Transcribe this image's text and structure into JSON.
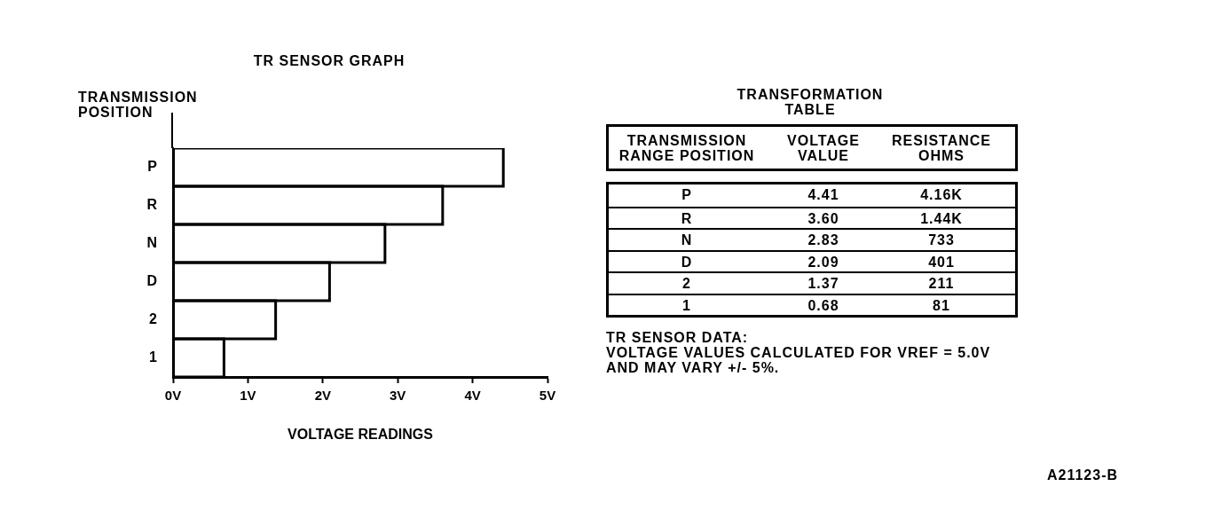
{
  "chart_data": [
    {
      "type": "bar",
      "orientation": "horizontal",
      "title": "TR SENSOR GRAPH",
      "xlabel": "VOLTAGE READINGS",
      "ylabel": "TRANSMISSION POSITION",
      "categories": [
        "P",
        "R",
        "N",
        "D",
        "2",
        "1"
      ],
      "values": [
        4.41,
        3.6,
        2.83,
        2.09,
        1.37,
        0.68
      ],
      "color": "#000000",
      "xlim": [
        0,
        5
      ],
      "xticks": [
        {
          "value": 0,
          "label": "0V"
        },
        {
          "value": 1,
          "label": "1V"
        },
        {
          "value": 2,
          "label": "2V"
        },
        {
          "value": 3,
          "label": "3V"
        },
        {
          "value": 4,
          "label": "4V"
        },
        {
          "value": 5,
          "label": "5V"
        }
      ]
    },
    {
      "type": "other",
      "title": "TRANSFORMATION TABLE",
      "xlabel": "TRANSMISSION RANGE POSITION",
      "categories": [
        "P",
        "R",
        "N",
        "D",
        "2",
        "1"
      ],
      "series": [
        {
          "name": "VOLTAGE VALUE",
          "values": [
            4.41,
            3.6,
            2.83,
            2.09,
            1.37,
            0.68
          ],
          "value_labels": [
            "4.41",
            "3.60",
            "2.83",
            "2.09",
            "1.37",
            "0.68"
          ]
        },
        {
          "name": "RESISTANCE OHMS",
          "values": [
            4160,
            1440,
            733,
            401,
            211,
            81
          ],
          "value_labels": [
            "4.16K",
            "1.44K",
            "733",
            "401",
            "211",
            "81"
          ]
        }
      ],
      "annotations": [
        "TR SENSOR DATA:",
        "VOLTAGE VALUES CALCULATED FOR VREF = 5.0V AND MAY VARY +/- 5%.",
        "A21123-B"
      ]
    }
  ]
}
